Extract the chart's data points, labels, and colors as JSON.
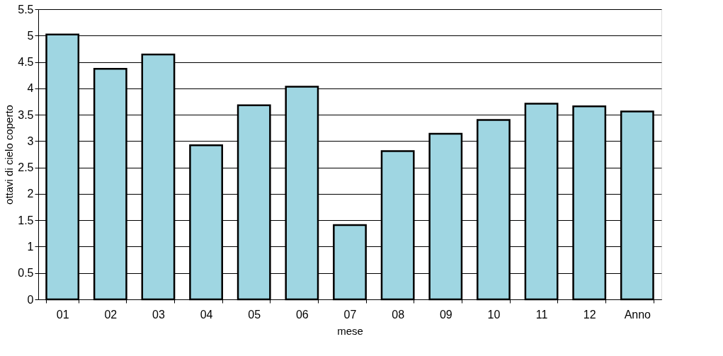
{
  "chart_data": {
    "type": "bar",
    "xlabel": "mese",
    "ylabel": "ottavi di cielo coperto",
    "categories": [
      "01",
      "02",
      "03",
      "04",
      "05",
      "06",
      "07",
      "08",
      "09",
      "10",
      "11",
      "12",
      "Anno"
    ],
    "values": [
      5.02,
      4.37,
      4.64,
      2.92,
      3.68,
      4.03,
      1.41,
      2.81,
      3.14,
      3.4,
      3.71,
      3.66,
      3.56
    ],
    "color": "#9fd6e2",
    "ylim": [
      0,
      5.5
    ],
    "yticks": [
      0,
      0.5,
      1,
      1.5,
      2,
      2.5,
      3,
      3.5,
      4,
      4.5,
      5,
      5.5
    ],
    "grid": "y"
  }
}
